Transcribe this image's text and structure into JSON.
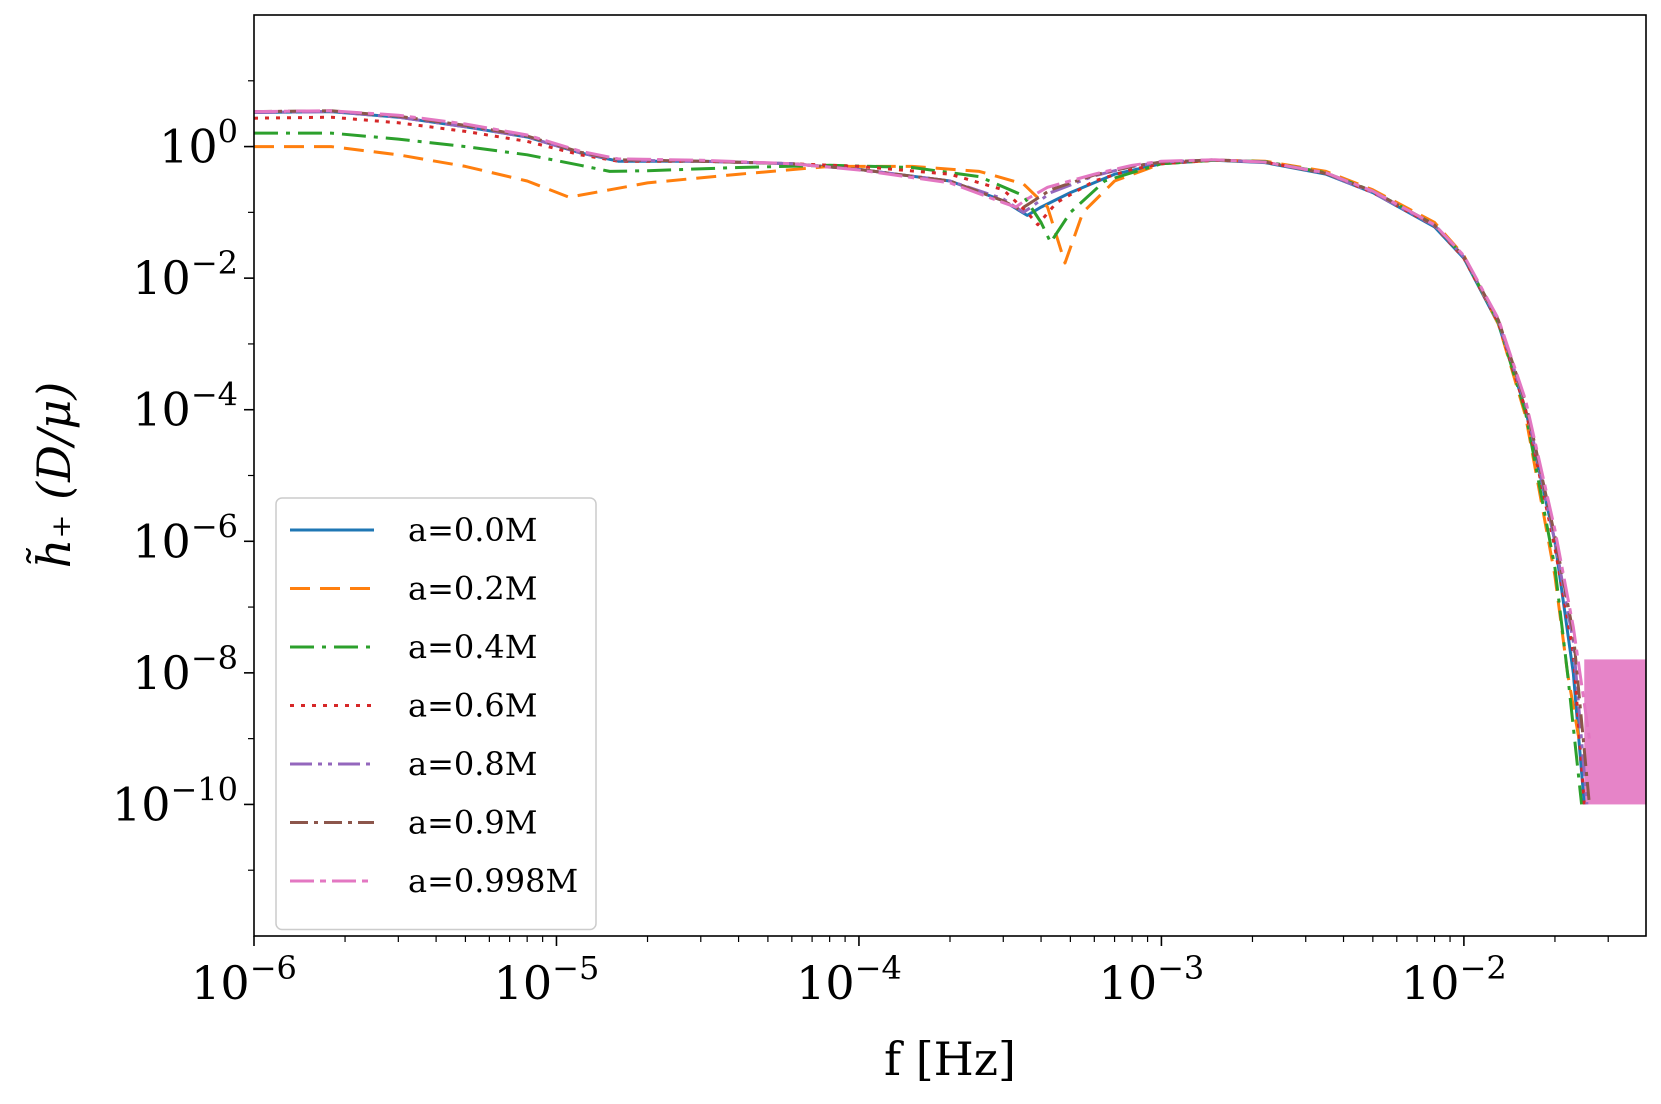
{
  "chart_data": {
    "type": "line",
    "xlabel": "f [Hz]",
    "ylabel": "h̃₊ (D/μ)",
    "x_scale": "log",
    "y_scale": "log",
    "xlim": [
      1e-06,
      0.04
    ],
    "ylim": [
      1e-12,
      100.0
    ],
    "x_ticks": [
      {
        "value": 1e-06,
        "base": "10",
        "exp": "−6"
      },
      {
        "value": 1e-05,
        "base": "10",
        "exp": "−5"
      },
      {
        "value": 0.0001,
        "base": "10",
        "exp": "−4"
      },
      {
        "value": 0.001,
        "base": "10",
        "exp": "−3"
      },
      {
        "value": 0.01,
        "base": "10",
        "exp": "−2"
      }
    ],
    "y_ticks": [
      {
        "value": 1,
        "base": "10",
        "exp": "0"
      },
      {
        "value": 0.01,
        "base": "10",
        "exp": "−2"
      },
      {
        "value": 0.0001,
        "base": "10",
        "exp": "−4"
      },
      {
        "value": 1e-06,
        "base": "10",
        "exp": "−6"
      },
      {
        "value": 1e-08,
        "base": "10",
        "exp": "−8"
      },
      {
        "value": 1e-10,
        "base": "10",
        "exp": "−10"
      }
    ],
    "grid": false,
    "legend_position": "lower-left",
    "noise_floor": {
      "f_start": 0.025,
      "f_end": 0.04,
      "upper": 1.6e-08,
      "lower": 1e-10
    },
    "series": [
      {
        "name": "a=0.0M",
        "color": "#1f77b4",
        "dash": "solid",
        "x": [
          1e-06,
          1.8e-06,
          3e-06,
          5e-06,
          8e-06,
          1.2e-05,
          1.6e-05,
          3e-05,
          6e-05,
          0.0001,
          0.0002,
          0.0003,
          0.00036,
          0.0004,
          0.0005,
          0.0007,
          0.001,
          0.0015,
          0.0022,
          0.0035,
          0.005,
          0.008,
          0.01,
          0.013,
          0.016,
          0.02,
          0.023,
          0.025
        ],
        "y": [
          3.3,
          3.4,
          2.8,
          2.0,
          1.4,
          0.8,
          0.6,
          0.6,
          0.55,
          0.45,
          0.3,
          0.15,
          0.09,
          0.12,
          0.2,
          0.38,
          0.55,
          0.62,
          0.57,
          0.38,
          0.2,
          0.06,
          0.02,
          0.002,
          0.0001,
          1e-06,
          1e-08,
          1e-10
        ]
      },
      {
        "name": "a=0.2M",
        "color": "#ff7f0e",
        "dash": "20,10",
        "x": [
          1e-06,
          1.8e-06,
          3e-06,
          5e-06,
          8e-06,
          1.1e-05,
          1.5e-05,
          2e-05,
          4e-05,
          8e-05,
          0.00015,
          0.00025,
          0.00035,
          0.00042,
          0.00048,
          0.00055,
          0.0007,
          0.001,
          0.0015,
          0.0022,
          0.0035,
          0.005,
          0.008,
          0.01,
          0.013,
          0.016,
          0.02,
          0.022,
          0.024
        ],
        "y": [
          1.0,
          1.0,
          0.75,
          0.5,
          0.3,
          0.17,
          0.22,
          0.28,
          0.38,
          0.5,
          0.5,
          0.42,
          0.27,
          0.12,
          0.017,
          0.1,
          0.3,
          0.55,
          0.62,
          0.6,
          0.42,
          0.22,
          0.07,
          0.022,
          0.002,
          8e-05,
          3e-07,
          1e-08,
          1e-09
        ]
      },
      {
        "name": "a=0.4M",
        "color": "#2ca02c",
        "dash": "24,8,4,8",
        "x": [
          1e-06,
          1.8e-06,
          3e-06,
          5e-06,
          8e-06,
          1.2e-05,
          1.5e-05,
          2e-05,
          4e-05,
          8e-05,
          0.00015,
          0.00025,
          0.00035,
          0.0004,
          0.00043,
          0.0005,
          0.00065,
          0.001,
          0.0015,
          0.0022,
          0.0035,
          0.005,
          0.008,
          0.01,
          0.013,
          0.016,
          0.02,
          0.022,
          0.0245
        ],
        "y": [
          1.6,
          1.6,
          1.3,
          1.0,
          0.75,
          0.52,
          0.42,
          0.43,
          0.48,
          0.52,
          0.48,
          0.35,
          0.18,
          0.07,
          0.035,
          0.1,
          0.3,
          0.55,
          0.62,
          0.59,
          0.4,
          0.21,
          0.065,
          0.021,
          0.0021,
          9e-05,
          4e-07,
          1e-08,
          1e-10
        ]
      },
      {
        "name": "a=0.6M",
        "color": "#d62728",
        "dash": "4,7",
        "x": [
          1e-06,
          1.8e-06,
          3e-06,
          5e-06,
          8e-06,
          1.2e-05,
          1.6e-05,
          3e-05,
          6e-05,
          0.0001,
          0.0002,
          0.0003,
          0.00036,
          0.00039,
          0.00045,
          0.0006,
          0.0008,
          0.001,
          0.0015,
          0.0022,
          0.0035,
          0.005,
          0.008,
          0.01,
          0.013,
          0.016,
          0.02,
          0.023,
          0.025
        ],
        "y": [
          2.7,
          2.8,
          2.3,
          1.7,
          1.2,
          0.75,
          0.6,
          0.6,
          0.55,
          0.5,
          0.38,
          0.22,
          0.1,
          0.065,
          0.14,
          0.3,
          0.45,
          0.55,
          0.62,
          0.58,
          0.39,
          0.2,
          0.062,
          0.02,
          0.0021,
          0.0001,
          8e-07,
          2e-08,
          1e-10
        ]
      },
      {
        "name": "a=0.8M",
        "color": "#9467bd",
        "dash": "22,6,4,6,4,6",
        "x": [
          1e-06,
          1.8e-06,
          3e-06,
          5e-06,
          8e-06,
          1.2e-05,
          1.6e-05,
          3e-05,
          6e-05,
          0.0001,
          0.0002,
          0.0003,
          0.00035,
          0.00038,
          0.00043,
          0.0006,
          0.0008,
          0.001,
          0.0015,
          0.0022,
          0.0035,
          0.005,
          0.008,
          0.01,
          0.013,
          0.016,
          0.02,
          0.023,
          0.0255
        ],
        "y": [
          3.3,
          3.4,
          2.8,
          2.0,
          1.4,
          0.8,
          0.62,
          0.6,
          0.55,
          0.45,
          0.3,
          0.16,
          0.1,
          0.13,
          0.2,
          0.36,
          0.5,
          0.58,
          0.63,
          0.58,
          0.39,
          0.2,
          0.063,
          0.021,
          0.0022,
          0.00012,
          1e-06,
          3e-08,
          1e-10
        ]
      },
      {
        "name": "a=0.9M",
        "color": "#8c564b",
        "dash": "18,6,4,6",
        "x": [
          1e-06,
          1.8e-06,
          3e-06,
          5e-06,
          8e-06,
          1.2e-05,
          1.6e-05,
          3e-05,
          6e-05,
          0.0001,
          0.0002,
          0.0003,
          0.00034,
          0.00037,
          0.00043,
          0.0006,
          0.0008,
          0.001,
          0.0015,
          0.0022,
          0.0035,
          0.005,
          0.008,
          0.01,
          0.013,
          0.016,
          0.02,
          0.023,
          0.026
        ],
        "y": [
          3.4,
          3.5,
          2.9,
          2.1,
          1.45,
          0.82,
          0.63,
          0.6,
          0.55,
          0.45,
          0.3,
          0.15,
          0.11,
          0.14,
          0.22,
          0.37,
          0.5,
          0.58,
          0.63,
          0.58,
          0.39,
          0.21,
          0.064,
          0.021,
          0.0023,
          0.00013,
          1.2e-06,
          4e-08,
          1e-10
        ]
      },
      {
        "name": "a=0.998M",
        "color": "#e377c2",
        "dash": "24,6,6,6",
        "x": [
          1e-06,
          1.8e-06,
          3e-06,
          5e-06,
          8e-06,
          1.2e-05,
          1.6e-05,
          3e-05,
          6e-05,
          0.0001,
          0.0002,
          0.0003,
          0.00033,
          0.00036,
          0.00042,
          0.0006,
          0.0008,
          0.001,
          0.0015,
          0.0022,
          0.0035,
          0.005,
          0.008,
          0.01,
          0.013,
          0.016,
          0.02,
          0.023,
          0.026
        ],
        "y": [
          3.4,
          3.5,
          3.0,
          2.2,
          1.5,
          0.85,
          0.65,
          0.62,
          0.55,
          0.44,
          0.28,
          0.14,
          0.12,
          0.16,
          0.24,
          0.38,
          0.52,
          0.6,
          0.63,
          0.58,
          0.4,
          0.21,
          0.065,
          0.022,
          0.0024,
          0.00014,
          1.5e-06,
          5e-08,
          1e-09
        ]
      }
    ]
  }
}
